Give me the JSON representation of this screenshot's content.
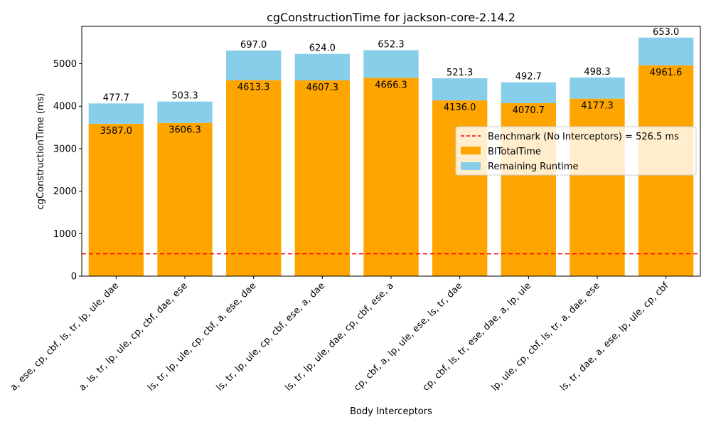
{
  "chart_data": {
    "type": "bar",
    "stacked": true,
    "title": "cgConstructionTime for jackson-core-2.14.2",
    "xlabel": "Body Interceptors",
    "ylabel": "cgConstructionTime (ms)",
    "ylim": [
      0,
      5880
    ],
    "yticks": [
      0,
      1000,
      2000,
      3000,
      4000,
      5000
    ],
    "categories": [
      "a, ese, cp, cbf, ls, tr, lp, ule, dae",
      "a, ls, tr, lp, ule, cp, cbf, dae, ese",
      "ls, tr, lp, ule, cp, cbf, a, ese, dae",
      "ls, tr, lp, ule, cp, cbf, ese, a, dae",
      "ls, tr, lp, ule, dae, cp, cbf, ese, a",
      "cp, cbf, a, lp, ule, ese, ls, tr, dae",
      "cp, cbf, ls, tr, ese, dae, a, lp, ule",
      "lp, ule, cp, cbf, ls, tr, a, dae, ese",
      "ls, tr, dae, a, ese, lp, ule, cp, cbf"
    ],
    "series": [
      {
        "name": "BITotalTime",
        "color": "#ffa500",
        "values": [
          3587.0,
          3606.3,
          4613.3,
          4607.3,
          4666.3,
          4136.0,
          4070.7,
          4177.3,
          4961.6
        ],
        "labels": [
          "3587.0",
          "3606.3",
          "4613.3",
          "4607.3",
          "4666.3",
          "4136.0",
          "4070.7",
          "4177.3",
          "4961.6"
        ]
      },
      {
        "name": "Remaining Runtime",
        "color": "#87ceeb",
        "values": [
          477.7,
          503.3,
          697.0,
          624.0,
          652.3,
          521.3,
          492.7,
          498.3,
          653.0
        ],
        "labels": [
          "477.7",
          "503.3",
          "697.0",
          "624.0",
          "652.3",
          "521.3",
          "492.7",
          "498.3",
          "653.0"
        ]
      }
    ],
    "benchmark": {
      "label": "Benchmark (No Interceptors) = 526.5 ms",
      "value": 526.5,
      "color": "#ff0000"
    },
    "legend_position": "center-right",
    "grid": false
  }
}
